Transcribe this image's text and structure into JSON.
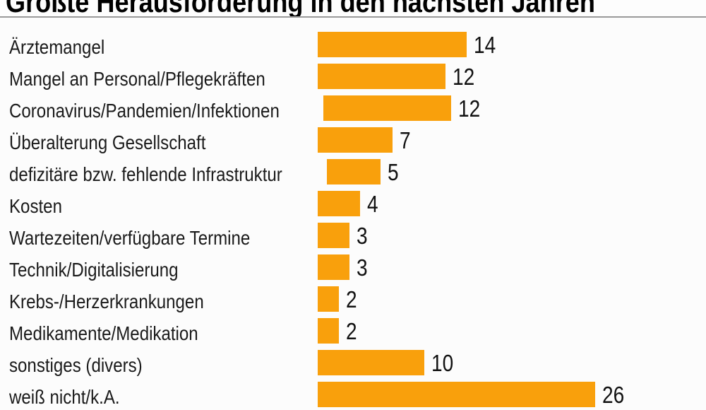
{
  "title": "Größte Herausforderung in den nächsten Jahren",
  "colors": {
    "bar": "#f9a00c",
    "title_rule": "#9a9a9a",
    "text": "#1a1a1a",
    "background": "#fcfcfc"
  },
  "chart_data": {
    "type": "bar",
    "orientation": "horizontal",
    "title": "Größte Herausforderung in den nächsten Jahren",
    "categories": [
      "Ärztemangel",
      "Mangel an Personal/Pflegekräften",
      "Coronavirus/Pandemien/Infektionen",
      "Überalterung Gesellschaft",
      "defizitäre bzw. fehlende Infrastruktur",
      "Kosten",
      "Wartezeiten/verfügbare Termine",
      "Technik/Digitalisierung",
      "Krebs-/Herzerkrankungen",
      "Medikamente/Medikation",
      "sonstiges (divers)",
      "weiß nicht/k.A."
    ],
    "values": [
      14,
      12,
      12,
      7,
      5,
      4,
      3,
      3,
      2,
      2,
      10,
      26
    ],
    "value_labels_shown": true,
    "xlabel": "",
    "ylabel": "",
    "grid": false,
    "legend": false,
    "axis_ticks_shown": false,
    "bar_color": "#f9a00c",
    "xlim": [
      0,
      35
    ]
  }
}
